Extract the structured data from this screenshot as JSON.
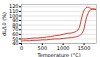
{
  "chart_data": {
    "type": "line",
    "xlabel": "Temperature (°C)",
    "ylabel": "dL/L0 (%)",
    "xlim": [
      0,
      1800
    ],
    "ylim": [
      40,
      125
    ],
    "xticks": [
      0,
      500,
      1000,
      1500
    ],
    "yticks": [
      40,
      50,
      60,
      70,
      80,
      90,
      100,
      110,
      120
    ],
    "grid": true,
    "series": [
      {
        "color": "#cc1100",
        "x": [
          0,
          50,
          100,
          200,
          300,
          400,
          500,
          600,
          700,
          800,
          900,
          1000,
          1100,
          1200,
          1280,
          1320,
          1360,
          1390,
          1410,
          1430,
          1450,
          1470,
          1490,
          1510,
          1530,
          1550,
          1570,
          1590,
          1610,
          1630,
          1650,
          1670,
          1700,
          1750,
          1800
        ],
        "values": [
          50,
          50,
          50,
          51,
          52,
          52,
          53,
          54,
          55,
          57,
          58,
          60,
          62,
          63,
          65,
          67,
          70,
          75,
          82,
          90,
          98,
          105,
          110,
          114,
          116,
          118,
          119,
          119,
          119,
          118,
          117,
          116,
          115,
          115,
          114
        ]
      },
      {
        "color": "#cc1100",
        "x": [
          1800,
          1750,
          1700,
          1670,
          1650,
          1630,
          1610,
          1590,
          1570,
          1550,
          1530,
          1510,
          1490,
          1470,
          1450,
          1430,
          1410,
          1390,
          1360,
          1320,
          1280,
          1200,
          1100,
          1000,
          900,
          800,
          700,
          600,
          500,
          400,
          300,
          200,
          100,
          50,
          0
        ],
        "values": [
          114,
          115,
          115,
          114,
          113,
          111,
          108,
          104,
          99,
          93,
          85,
          76,
          69,
          65,
          62,
          60,
          58,
          57,
          56,
          55,
          54,
          53,
          52,
          51,
          50,
          50,
          49,
          48,
          48,
          47,
          47,
          46,
          46,
          46,
          45
        ]
      }
    ]
  }
}
